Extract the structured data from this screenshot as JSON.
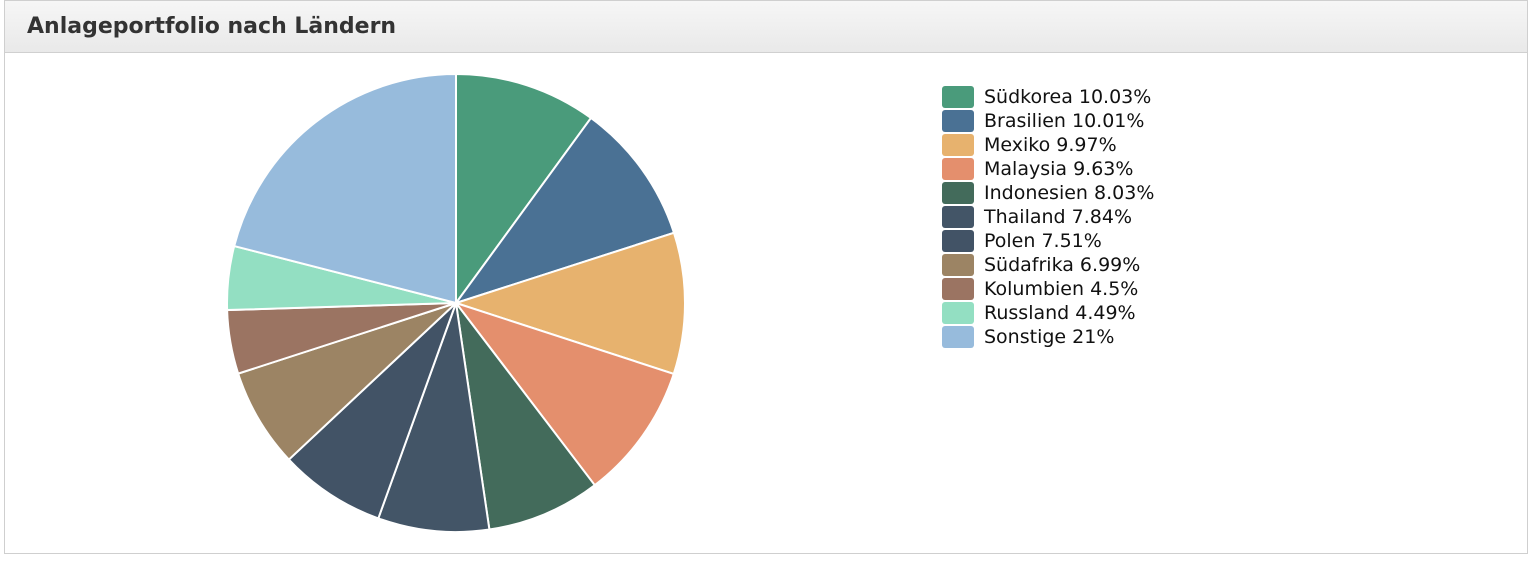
{
  "header": {
    "title": "Anlageportfolio nach Ländern"
  },
  "chart_data": {
    "type": "pie",
    "title": "Anlageportfolio nach Ländern",
    "legend_position": "right",
    "slices": [
      {
        "label": "Südkorea",
        "value": 10.03,
        "display": "Südkorea 10.03%",
        "color": "#4a9b7b"
      },
      {
        "label": "Brasilien",
        "value": 10.01,
        "display": "Brasilien 10.01%",
        "color": "#4a7194"
      },
      {
        "label": "Mexiko",
        "value": 9.97,
        "display": "Mexiko 9.97%",
        "color": "#e7b26e"
      },
      {
        "label": "Malaysia",
        "value": 9.63,
        "display": "Malaysia 9.63%",
        "color": "#e48f6d"
      },
      {
        "label": "Indonesien",
        "value": 8.03,
        "display": "Indonesien 8.03%",
        "color": "#436b5b"
      },
      {
        "label": "Thailand",
        "value": 7.84,
        "display": "Thailand 7.84%",
        "color": "#435567"
      },
      {
        "label": "Polen",
        "value": 7.51,
        "display": "Polen 7.51%",
        "color": "#425366"
      },
      {
        "label": "Südafrika",
        "value": 6.99,
        "display": "Südafrika 6.99%",
        "color": "#9c8464"
      },
      {
        "label": "Kolumbien",
        "value": 4.5,
        "display": "Kolumbien 4.5%",
        "color": "#9b7462"
      },
      {
        "label": "Russland",
        "value": 4.49,
        "display": "Russland 4.49%",
        "color": "#93dfc2"
      },
      {
        "label": "Sonstige",
        "value": 21,
        "display": "Sonstige 21%",
        "color": "#97bbdc"
      }
    ]
  }
}
